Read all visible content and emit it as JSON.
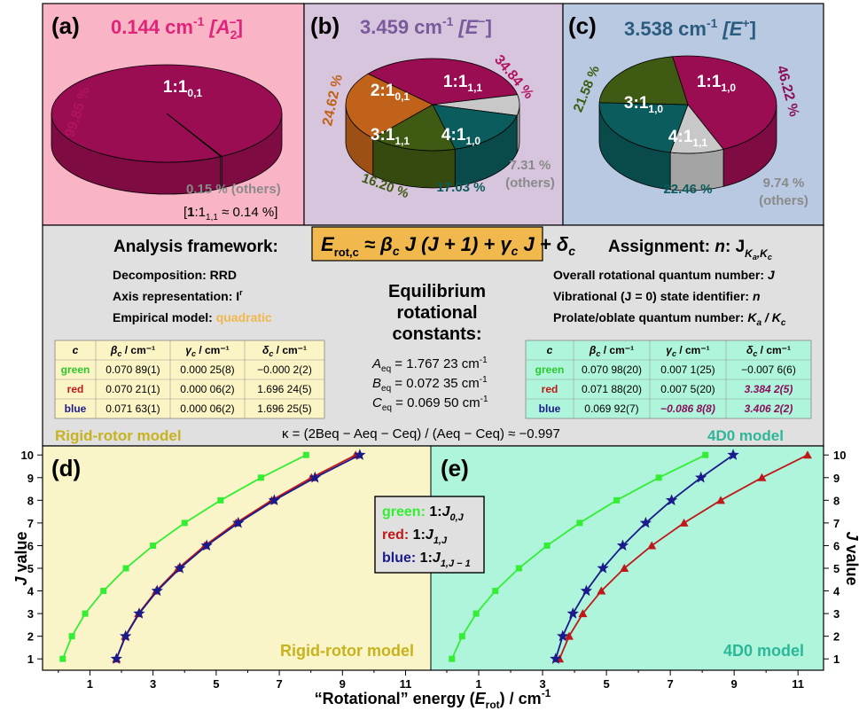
{
  "panels": {
    "a": {
      "letter": "(a)",
      "freq": "0.144 cm",
      "sup": "-1",
      "sym": "[A",
      "symsub": "2",
      "symsup": "−",
      "symend": "]",
      "color": "#e0247a",
      "bg": "#f9b5c6"
    },
    "b": {
      "letter": "(b)",
      "freq": "3.459 cm",
      "sup": "-1",
      "sym": "[E",
      "symsup": "−",
      "symend": "]",
      "color": "#7a5a9c",
      "bg": "#d7c5dd"
    },
    "c": {
      "letter": "(c)",
      "freq": "3.538 cm",
      "sup": "-1",
      "sym": "[E",
      "symsup": "+",
      "symend": "]",
      "color": "#2a5c7f",
      "bg": "#b9c9e2"
    }
  },
  "pies": {
    "a": {
      "slices": [
        {
          "label": "1:1",
          "sub": "0,1",
          "pct": "99.85 %",
          "value": 99.85,
          "color": "#9b0d52",
          "textcolor": "#ffffff"
        },
        {
          "label": "",
          "sub": "",
          "pct": "0.15 % (others)",
          "value": 0.15,
          "color": "#c8c8c8"
        }
      ],
      "note_prefix": "[",
      "note_bold": "1",
      "note_mid": ":1",
      "note_sub": "1,1",
      "note_end": " ≈ 0.14 %]"
    },
    "b": {
      "slices": [
        {
          "label": "1:1",
          "sub": "1,1",
          "pct": "34.84 %",
          "value": 34.84,
          "color": "#9b0d52"
        },
        {
          "label": "",
          "sub": "",
          "pct": "7.31 %",
          "pct2": "(others)",
          "value": 7.31,
          "color": "#c8c8c8"
        },
        {
          "label": "4:1",
          "sub": "1,0",
          "pct": "17.03 %",
          "value": 17.03,
          "color": "#0b5c5c"
        },
        {
          "label": "3:1",
          "sub": "1,1",
          "pct": "16.20 %",
          "value": 16.2,
          "color": "#3f5a12"
        },
        {
          "label": "2:1",
          "sub": "0,1",
          "pct": "24.62 %",
          "value": 24.62,
          "color": "#c0621a"
        }
      ]
    },
    "c": {
      "slices": [
        {
          "label": "1:1",
          "sub": "1,0",
          "pct": "46.22 %",
          "value": 46.22,
          "color": "#9b0d52"
        },
        {
          "label": "",
          "sub": "",
          "pct": "9.74 %",
          "pct2": "(others)",
          "value": 9.74,
          "color": "#c8c8c8"
        },
        {
          "label": "4:1",
          "sub": "1,1",
          "pct": "22.46 %",
          "value": 22.46,
          "color": "#0b5c5c"
        },
        {
          "label": "3:1",
          "sub": "1,0",
          "pct": "21.58 %",
          "value": 21.58,
          "color": "#3f5a12"
        }
      ]
    }
  },
  "middle": {
    "bg": "#e0e0e0",
    "formula": "E",
    "formula_sub": "rot,c",
    "formula_rest": " ≈ β",
    "formula_rest2": " J (J + 1) + γ",
    "formula_rest3": " J + δ",
    "formula_c": "c",
    "formula_bg": "#f0b84d",
    "analysis_title": "Analysis framework:",
    "analysis_lines": [
      {
        "k": "Decomposition: ",
        "v": "RRD"
      },
      {
        "k": "Axis representation: ",
        "v": "I",
        "sup": "r"
      },
      {
        "k": "Empirical model: ",
        "v": "quadratic",
        "vcolor": "#f0b84d"
      }
    ],
    "assignment_title": "Assignment: ",
    "assignment_title2": "n",
    "assignment_title3": ": J",
    "assignment_sub": "K",
    "assignment_sub2": "a",
    "assignment_sub3": ",K",
    "assignment_sub4": "c",
    "assignment_lines": [
      {
        "k": "Overall rotational quantum number: ",
        "v": "J"
      },
      {
        "k": "Vibrational (J = 0) state identifier: ",
        "v": "n"
      },
      {
        "k": "Prolate/oblate quantum number: ",
        "v": "K",
        "vsub": "a",
        "v2": " / K",
        "v2sub": "c"
      }
    ],
    "eq_title": [
      "Equilibrium",
      "rotational",
      "constants:"
    ],
    "eq_values": [
      {
        "sym": "A",
        "sub": "eq",
        "val": " = 1.767 23 cm",
        "sup": "-1"
      },
      {
        "sym": "B",
        "sub": "eq",
        "val": " = 0.072 35 cm",
        "sup": "-1"
      },
      {
        "sym": "C",
        "sub": "eq",
        "val": " = 0.069 50 cm",
        "sup": "-1"
      }
    ],
    "kappa": "κ = (2B",
    "kappa_expr": "κ = (2Beq − Aeq − Ceq) / (Aeq − Ceq) ≈ −0.997",
    "table_left": {
      "bg": "#fbf4c4",
      "headers": [
        "c",
        "β_c / cm⁻¹",
        "γ_c / cm⁻¹",
        "δ_c / cm⁻¹"
      ],
      "rows": [
        {
          "c": "green",
          "color": "#2cc82c",
          "vals": [
            "0.070 89(1)",
            "0.000 25(8)",
            "−0.000 2(2)"
          ]
        },
        {
          "c": "red",
          "color": "#c01818",
          "vals": [
            "0.070 21(1)",
            "0.000 06(2)",
            "1.696 24(5)"
          ]
        },
        {
          "c": "blue",
          "color": "#1a1a8a",
          "vals": [
            "0.071 63(1)",
            "0.000 06(2)",
            "1.696 25(5)"
          ]
        }
      ]
    },
    "table_right": {
      "bg": "#aef5dc",
      "headers": [
        "c",
        "β_c / cm⁻¹",
        "γ_c / cm⁻¹",
        "δ_c / cm⁻¹"
      ],
      "rows": [
        {
          "c": "green",
          "color": "#2cc82c",
          "vals": [
            "0.070 98(20)",
            "0.007 1(25)",
            "−0.007 6(6)"
          ],
          "special": []
        },
        {
          "c": "red",
          "color": "#c01818",
          "vals": [
            "0.071 88(20)",
            "0.007 5(20)",
            "3.384 2(5)"
          ],
          "special": [
            2
          ]
        },
        {
          "c": "blue",
          "color": "#1a1a8a",
          "vals": [
            "0.069 92(7)",
            "−0.086 8(8)",
            "3.406 2(2)"
          ],
          "special": [
            1,
            2
          ]
        }
      ],
      "special_color": "#8a0e5a"
    },
    "model_left": "Rigid-rotor model",
    "model_left_color": "#c8b21e",
    "model_right": "4D0 model",
    "model_right_color": "#2cb898"
  },
  "plots": {
    "d_letter": "(d)",
    "e_letter": "(e)",
    "d_bg": "#faf5c8",
    "e_bg": "#aef5dc",
    "d_label": "Rigid-rotor model",
    "e_label": "4D0 model",
    "xlabel_pre": "“Rotational” energy (",
    "xlabel_sym": "E",
    "xlabel_sub": "rot",
    "xlabel_post": ") / cm",
    "xlabel_sup": "-1",
    "ylabel_sym": "J",
    "ylabel_rest": " value",
    "legend": [
      {
        "c": "green: ",
        "pre": "1:",
        "sym": "J",
        "sub": "0,J",
        "color": "#33ee33"
      },
      {
        "c": "red: ",
        "pre": "1:",
        "sym": "J",
        "sub": "1,J",
        "color": "#c01818"
      },
      {
        "c": "blue: ",
        "pre": "1:",
        "sym": "J",
        "sub": "1,J − 1",
        "color": "#1a1a8a"
      }
    ]
  },
  "chart_data": {
    "type": "line",
    "xlabel": "“Rotational” energy (Erot) / cm-1",
    "ylabel": "J value",
    "xlim": [
      -0.5,
      11.8
    ],
    "ylim": [
      0.5,
      10.4
    ],
    "xticks": [
      1,
      3,
      5,
      7,
      9,
      11
    ],
    "yticks": [
      1,
      2,
      3,
      4,
      5,
      6,
      7,
      8,
      9,
      10
    ],
    "panels": [
      {
        "name": "(d)",
        "series": [
          {
            "name": "green: 1:J0,J",
            "color": "#33ee33",
            "marker": "square",
            "x": [
              0.14,
              0.43,
              0.85,
              1.43,
              2.14,
              3.0,
              4.0,
              5.14,
              6.42,
              7.85
            ],
            "y": [
              1,
              2,
              3,
              4,
              5,
              6,
              7,
              8,
              9,
              10
            ]
          },
          {
            "name": "red: 1:J1,J",
            "color": "#c01818",
            "marker": "triangle",
            "x": [
              1.84,
              2.12,
              2.54,
              3.1,
              3.8,
              4.64,
              5.63,
              6.76,
              8.02,
              9.42
            ],
            "y": [
              1,
              2,
              3,
              4,
              5,
              6,
              7,
              8,
              9,
              10
            ]
          },
          {
            "name": "blue: 1:J1,J−1",
            "color": "#1a1a8a",
            "marker": "star",
            "x": [
              1.84,
              2.13,
              2.56,
              3.13,
              3.85,
              4.7,
              5.7,
              6.84,
              8.13,
              9.55
            ],
            "y": [
              1,
              2,
              3,
              4,
              5,
              6,
              7,
              8,
              9,
              10
            ]
          }
        ]
      },
      {
        "name": "(e)",
        "series": [
          {
            "name": "green: 1:J0,J",
            "color": "#33ee33",
            "marker": "square",
            "x": [
              0.16,
              0.48,
              0.92,
              1.52,
              2.26,
              3.14,
              4.16,
              5.32,
              6.64,
              8.1
            ],
            "y": [
              1,
              2,
              3,
              4,
              5,
              6,
              7,
              8,
              9,
              10
            ]
          },
          {
            "name": "red: 1:J1,J",
            "color": "#c01818",
            "marker": "triangle",
            "x": [
              3.53,
              3.83,
              4.26,
              4.84,
              5.56,
              6.42,
              7.43,
              8.58,
              9.87,
              11.3
            ],
            "y": [
              1,
              2,
              3,
              4,
              5,
              6,
              7,
              8,
              9,
              10
            ]
          },
          {
            "name": "blue: 1:J1,J−1",
            "color": "#1a1a8a",
            "marker": "star",
            "x": [
              3.41,
              3.63,
              3.95,
              4.37,
              4.89,
              5.51,
              6.23,
              7.04,
              7.96,
              8.97
            ],
            "y": [
              1,
              2,
              3,
              4,
              5,
              6,
              7,
              8,
              9,
              10
            ]
          }
        ]
      }
    ]
  }
}
